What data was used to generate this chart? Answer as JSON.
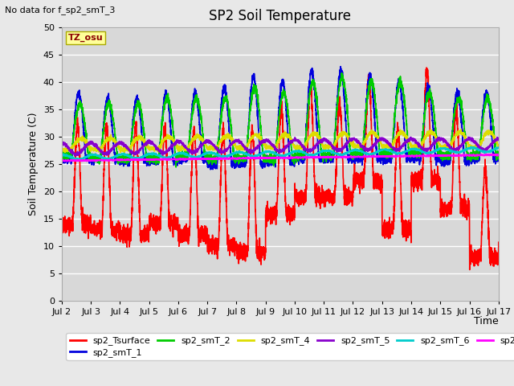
{
  "title": "SP2 Soil Temperature",
  "note": "No data for f_sp2_smT_3",
  "ylabel": "Soil Temperature (C)",
  "xlabel": "Time",
  "ylim": [
    0,
    50
  ],
  "xlim": [
    0,
    360
  ],
  "tz_label": "TZ_osu",
  "fig_bg_color": "#e8e8e8",
  "plot_bg_color": "#d8d8d8",
  "grid_color": "#ffffff",
  "series": {
    "sp2_Tsurface": {
      "color": "#ff0000",
      "lw": 1.2
    },
    "sp2_smT_1": {
      "color": "#0000dd",
      "lw": 1.2
    },
    "sp2_smT_2": {
      "color": "#00cc00",
      "lw": 1.2
    },
    "sp2_smT_4": {
      "color": "#dddd00",
      "lw": 1.2
    },
    "sp2_smT_5": {
      "color": "#8800cc",
      "lw": 1.2
    },
    "sp2_smT_6": {
      "color": "#00cccc",
      "lw": 1.2
    },
    "sp2_smT_7": {
      "color": "#ff00ff",
      "lw": 1.2
    }
  },
  "xtick_labels": [
    "Jul 2",
    "Jul 3",
    "Jul 4",
    "Jul 5",
    "Jul 6",
    "Jul 7",
    "Jul 8",
    "Jul 9",
    "Jul 10",
    "Jul 11",
    "Jul 12",
    "Jul 13",
    "Jul 14",
    "Jul 15",
    "Jul 16",
    "Jul 17"
  ],
  "xtick_positions": [
    0,
    24,
    48,
    72,
    96,
    120,
    144,
    168,
    192,
    216,
    240,
    264,
    288,
    312,
    336,
    360
  ],
  "ytick_positions": [
    0,
    5,
    10,
    15,
    20,
    25,
    30,
    35,
    40,
    45,
    50
  ]
}
